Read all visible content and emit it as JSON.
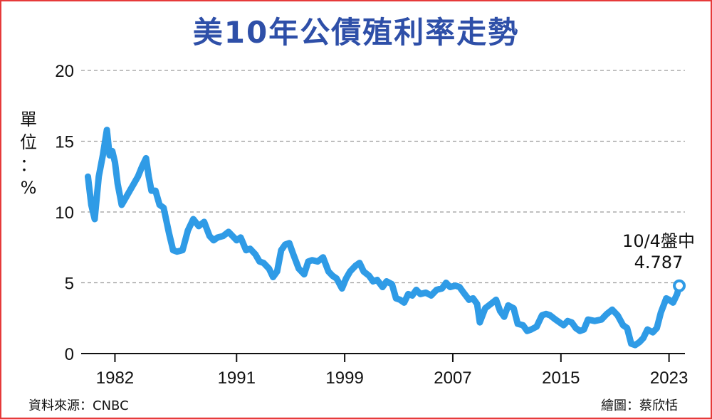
{
  "title": "美10年公債殖利率走勢",
  "unit": [
    "單",
    "位",
    "：",
    "%"
  ],
  "source": "資料來源：CNBC",
  "credit": "繪圖：蔡欣恬",
  "colors": {
    "title": "#2e4fa8",
    "line": "#2f9be6",
    "grid": "#9a9a9a",
    "frame": "#e63a3a"
  },
  "chart_data": {
    "type": "line",
    "title": "美10年公債殖利率走勢",
    "ylabel": "單位：%",
    "xlabel": "",
    "ylim": [
      0,
      20
    ],
    "xlim": [
      1979.5,
      2024.6
    ],
    "yticks": [
      0,
      5,
      10,
      15,
      20
    ],
    "xticks": [
      1982,
      1991,
      1999,
      2007,
      2015,
      2023
    ],
    "grid": "horizontal dashed",
    "annotation": {
      "label": "10/4盤中",
      "value": "4.787",
      "x": 2023.76,
      "y": 4.787
    },
    "series": [
      {
        "x": [
          1980.0,
          1980.25,
          1980.5,
          1980.8,
          1981.1,
          1981.4,
          1981.6,
          1981.8,
          1982.0,
          1982.2,
          1982.5,
          1982.8,
          1983.1,
          1983.4,
          1983.7,
          1984.0,
          1984.3,
          1984.5,
          1984.7,
          1985.0,
          1985.3,
          1985.6,
          1986.0,
          1986.3,
          1986.6,
          1987.0,
          1987.4,
          1987.8,
          1988.2,
          1988.6,
          1989.0,
          1989.3,
          1989.6,
          1990.0,
          1990.4,
          1990.8,
          1991.0,
          1991.3,
          1991.7,
          1992.0,
          1992.4,
          1992.7,
          1993.0,
          1993.4,
          1993.7,
          1994.0,
          1994.3,
          1994.6,
          1994.9,
          1995.2,
          1995.6,
          1996.0,
          1996.3,
          1996.6,
          1997.0,
          1997.4,
          1997.8,
          1998.1,
          1998.4,
          1998.8,
          1999.1,
          1999.4,
          1999.8,
          2000.1,
          2000.4,
          2000.8,
          2001.1,
          2001.4,
          2001.8,
          2002.1,
          2002.5,
          2002.8,
          2003.1,
          2003.4,
          2003.7,
          2004.0,
          2004.3,
          2004.6,
          2005.0,
          2005.4,
          2005.8,
          2006.2,
          2006.5,
          2006.8,
          2007.2,
          2007.5,
          2007.8,
          2008.2,
          2008.5,
          2008.8,
          2009.0,
          2009.4,
          2009.8,
          2010.2,
          2010.5,
          2010.8,
          2011.1,
          2011.5,
          2011.8,
          2012.2,
          2012.5,
          2012.8,
          2013.2,
          2013.6,
          2013.9,
          2014.2,
          2014.6,
          2014.9,
          2015.2,
          2015.5,
          2015.8,
          2016.1,
          2016.4,
          2016.7,
          2017.0,
          2017.5,
          2018.0,
          2018.4,
          2018.8,
          2019.2,
          2019.6,
          2019.9,
          2020.2,
          2020.5,
          2020.8,
          2021.1,
          2021.4,
          2021.8,
          2022.1,
          2022.4,
          2022.8,
          2023.0,
          2023.3,
          2023.6,
          2023.76
        ],
        "values": [
          12.5,
          10.5,
          9.5,
          12.5,
          14.0,
          15.8,
          14.0,
          14.3,
          13.5,
          12.0,
          10.5,
          11.0,
          11.5,
          12.0,
          12.5,
          13.2,
          13.8,
          12.5,
          11.5,
          11.5,
          10.5,
          10.3,
          8.5,
          7.3,
          7.2,
          7.3,
          8.7,
          9.5,
          9.0,
          9.3,
          8.3,
          8.0,
          8.2,
          8.3,
          8.6,
          8.2,
          8.0,
          8.2,
          7.3,
          7.4,
          7.0,
          6.5,
          6.4,
          6.0,
          5.4,
          5.8,
          7.3,
          7.7,
          7.8,
          7.0,
          6.0,
          5.6,
          6.5,
          6.6,
          6.5,
          6.8,
          5.8,
          5.5,
          5.3,
          4.6,
          5.3,
          5.8,
          6.2,
          6.4,
          5.8,
          5.5,
          5.1,
          5.2,
          4.7,
          5.1,
          4.9,
          3.9,
          3.8,
          3.6,
          4.2,
          4.1,
          4.5,
          4.2,
          4.3,
          4.1,
          4.5,
          4.6,
          5.0,
          4.7,
          4.8,
          4.7,
          4.3,
          3.8,
          3.9,
          3.5,
          2.2,
          3.2,
          3.5,
          3.8,
          3.0,
          2.6,
          3.4,
          3.2,
          2.1,
          2.0,
          1.6,
          1.7,
          1.9,
          2.7,
          2.8,
          2.7,
          2.4,
          2.2,
          2.0,
          2.3,
          2.2,
          1.8,
          1.6,
          1.7,
          2.4,
          2.3,
          2.4,
          2.8,
          3.1,
          2.7,
          2.0,
          1.8,
          0.7,
          0.6,
          0.8,
          1.1,
          1.7,
          1.5,
          1.8,
          2.9,
          3.9,
          3.8,
          3.6,
          4.2,
          4.787
        ]
      }
    ]
  }
}
